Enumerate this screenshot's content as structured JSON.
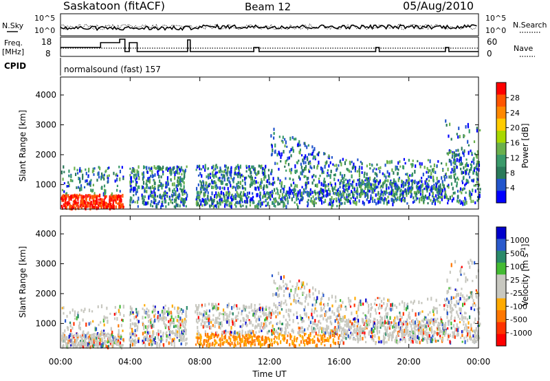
{
  "header": {
    "station": "Saskatoon (fitACF)",
    "beam": "Beam 12",
    "date": "05/Aug/2010"
  },
  "strip_labels": {
    "nsky": "N.Sky",
    "nsearch": "N.Search",
    "freq_line1": "Freq.",
    "freq_line2": "[MHz]",
    "nave": "Nave",
    "cpid": "CPID",
    "cpid_text": "normalsound (fast) 157"
  },
  "strip_ticks": {
    "noise_left": [
      "10^5",
      "10^0"
    ],
    "noise_right": [
      "10^5",
      "10^0"
    ],
    "freq_left": [
      "18",
      "8"
    ],
    "nave_right": [
      "60",
      "0"
    ]
  },
  "chart_data": [
    {
      "type": "heatmap",
      "title": "",
      "ylabel": "Slant Range [km]",
      "xlabel": "",
      "x_ticks": [
        "00:00",
        "04:00",
        "08:00",
        "12:00",
        "16:00",
        "20:00",
        "00:00"
      ],
      "y_ticks": [
        1000,
        2000,
        3000,
        4000
      ],
      "ylim": [
        180,
        4600
      ],
      "xlim_hours": [
        0,
        24
      ],
      "colorbar": {
        "label": "Power [dB]",
        "ticks": [
          "28",
          "24",
          "20",
          "16",
          "12",
          "8",
          "4"
        ],
        "colors": [
          "#ff0000",
          "#ff5500",
          "#ff8800",
          "#ffcc00",
          "#a8d800",
          "#6ab04c",
          "#3a9a6a",
          "#2a7a5a",
          "#2255cc",
          "#0000ff"
        ]
      }
    },
    {
      "type": "heatmap",
      "title": "",
      "ylabel": "Slant Range [km]",
      "xlabel": "Time UT",
      "x_ticks": [
        "00:00",
        "04:00",
        "08:00",
        "12:00",
        "16:00",
        "20:00",
        "00:00"
      ],
      "y_ticks": [
        1000,
        2000,
        3000,
        4000
      ],
      "ylim": [
        180,
        4600
      ],
      "xlim_hours": [
        0,
        24
      ],
      "colorbar": {
        "label": "Velocity [m s^-1]",
        "ticks": [
          "1000",
          "500",
          "100",
          "25",
          "-25",
          "-100",
          "-500",
          "-1000"
        ],
        "colors": [
          "#0000cc",
          "#2a5acc",
          "#2a8a6a",
          "#44bb33",
          "#c8c8c0",
          "#c8c8c0",
          "#ffaa00",
          "#ff7700",
          "#ff3300",
          "#ff0000"
        ]
      }
    }
  ]
}
